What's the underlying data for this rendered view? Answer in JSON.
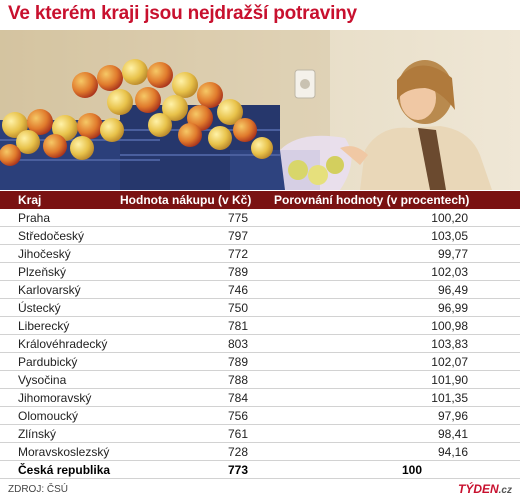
{
  "title": "Ve kterém kraji jsou nejdražší potraviny",
  "colors": {
    "title": "#c8102e",
    "header_bg": "#7a1212",
    "header_text": "#ffffff",
    "row_border": "#d2d2d2",
    "logo": "#c8102e"
  },
  "table": {
    "headers": {
      "kraj": "Kraj",
      "hodnota": "Hodnota nákupu (v Kč)",
      "porovnani": "Porovnání hodnoty (v procentech)"
    },
    "rows": [
      {
        "kraj": "Praha",
        "hodnota": "775",
        "porovnani": "100,20"
      },
      {
        "kraj": "Středočeský",
        "hodnota": "797",
        "porovnani": "103,05"
      },
      {
        "kraj": "Jihočeský",
        "hodnota": "772",
        "porovnani": "99,77"
      },
      {
        "kraj": "Plzeňský",
        "hodnota": "789",
        "porovnani": "102,03"
      },
      {
        "kraj": "Karlovarský",
        "hodnota": "746",
        "porovnani": "96,49"
      },
      {
        "kraj": "Ústecký",
        "hodnota": "750",
        "porovnani": "96,99"
      },
      {
        "kraj": "Liberecký",
        "hodnota": "781",
        "porovnani": "100,98"
      },
      {
        "kraj": "Královéhradecký",
        "hodnota": "803",
        "porovnani": "103,83"
      },
      {
        "kraj": "Pardubický",
        "hodnota": "789",
        "porovnani": "102,07"
      },
      {
        "kraj": "Vysočina",
        "hodnota": "788",
        "porovnani": "101,90"
      },
      {
        "kraj": "Jihomoravský",
        "hodnota": "784",
        "porovnani": "101,35"
      },
      {
        "kraj": "Olomoucký",
        "hodnota": "756",
        "porovnani": "97,96"
      },
      {
        "kraj": "Zlínský",
        "hodnota": "761",
        "porovnani": "98,41"
      },
      {
        "kraj": "Moravskoslezský",
        "hodnota": "728",
        "porovnani": "94,16"
      }
    ],
    "total": {
      "kraj": "Česká republika",
      "hodnota": "773",
      "porovnani": "100"
    }
  },
  "chart_data": {
    "type": "table",
    "title": "Ve kterém kraji jsou nejdražší potraviny",
    "columns": [
      "Kraj",
      "Hodnota nákupu (v Kč)",
      "Porovnání hodnoty (v procentech)"
    ],
    "categories": [
      "Praha",
      "Středočeský",
      "Jihočeský",
      "Plzeňský",
      "Karlovarský",
      "Ústecký",
      "Liberecký",
      "Královéhradecký",
      "Pardubický",
      "Vysočina",
      "Jihomoravský",
      "Olomoucký",
      "Zlínský",
      "Moravskoslezský",
      "Česká republika"
    ],
    "series": [
      {
        "name": "Hodnota nákupu (v Kč)",
        "values": [
          775,
          797,
          772,
          789,
          746,
          750,
          781,
          803,
          789,
          788,
          784,
          756,
          761,
          728,
          773
        ]
      },
      {
        "name": "Porovnání hodnoty (v procentech)",
        "values": [
          100.2,
          103.05,
          99.77,
          102.03,
          96.49,
          96.99,
          100.98,
          103.83,
          102.07,
          101.9,
          101.35,
          97.96,
          98.41,
          94.16,
          100
        ]
      }
    ]
  },
  "footer": {
    "source": "ZDROJ: ČSÚ",
    "logo_main": "TÝDEN",
    "logo_suffix": ".cz"
  }
}
